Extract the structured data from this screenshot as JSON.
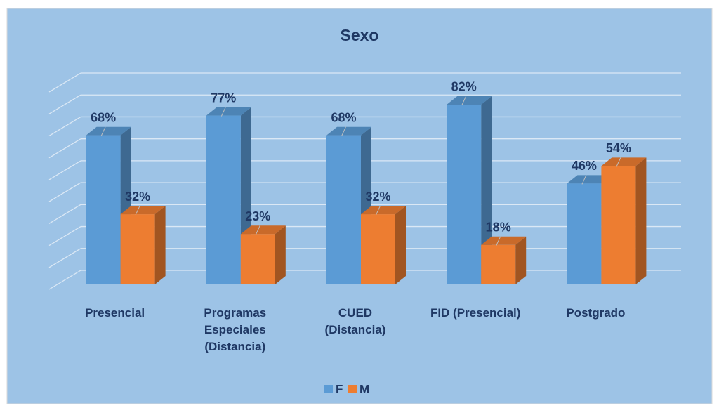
{
  "chart_data": {
    "type": "bar3d",
    "title": "Sexo",
    "categories": [
      "Presencial",
      "Programas\nEspeciales\n(Distancia)",
      "CUED\n(Distancia)",
      "FID (Presencial)",
      "Postgrado"
    ],
    "series": [
      {
        "name": "F",
        "color": "#5b9bd5",
        "values": [
          68,
          77,
          68,
          82,
          46
        ],
        "value_labels": [
          "68%",
          "77%",
          "68%",
          "82%",
          "46%"
        ]
      },
      {
        "name": "M",
        "color": "#ed7d31",
        "values": [
          32,
          23,
          32,
          18,
          54
        ],
        "value_labels": [
          "32%",
          "23%",
          "32%",
          "18%",
          "54%"
        ]
      }
    ],
    "ylim": [
      0,
      90
    ],
    "yticks": [
      0,
      10,
      20,
      30,
      40,
      50,
      60,
      70,
      80,
      90
    ],
    "grid": true,
    "legend": "bottom"
  }
}
